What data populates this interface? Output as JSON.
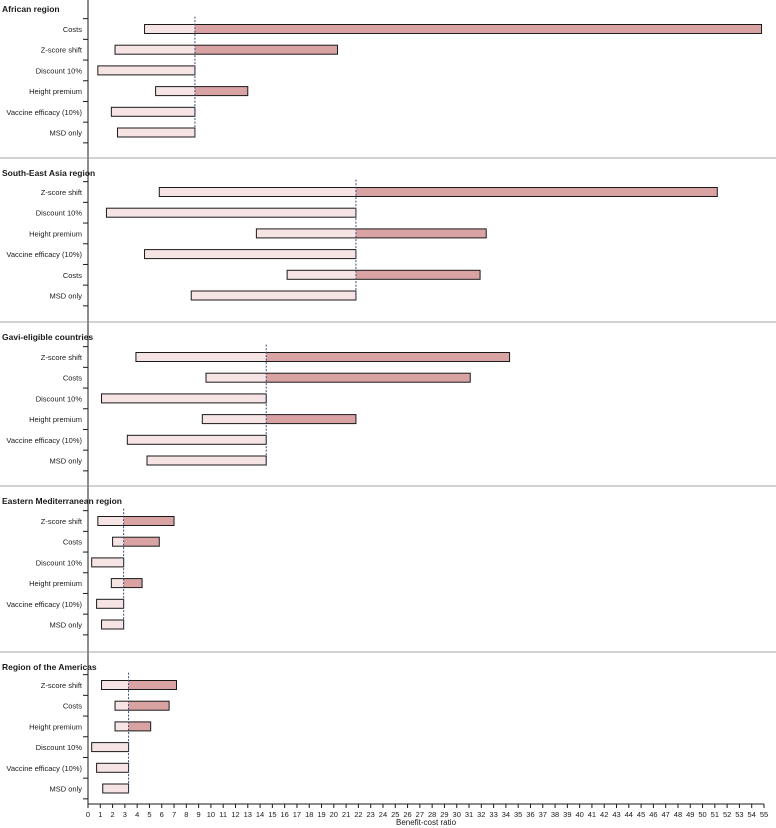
{
  "chart_data": {
    "type": "bar",
    "subtype": "tornado-range",
    "xlabel": "Benefit-cost ratio",
    "xlim": [
      0,
      55
    ],
    "x_ticks": [
      0,
      1,
      2,
      3,
      4,
      5,
      6,
      7,
      8,
      9,
      10,
      11,
      12,
      13,
      14,
      15,
      16,
      17,
      18,
      19,
      20,
      21,
      22,
      23,
      24,
      25,
      26,
      27,
      28,
      29,
      30,
      31,
      32,
      33,
      34,
      35,
      36,
      37,
      38,
      39,
      40,
      41,
      42,
      43,
      44,
      45,
      46,
      47,
      48,
      49,
      50,
      51,
      52,
      53,
      54,
      55
    ],
    "colors": {
      "above_base": "#d9a3a3",
      "below_base": "#f6e3e3",
      "bar_stroke": "#1a1a1a",
      "reference_line": "#3a4a7a",
      "axis": "#1a1a1a"
    },
    "panels": [
      {
        "title": "African region",
        "base": 8.7,
        "rows": [
          {
            "label": "Costs",
            "low": 4.6,
            "high": 54.8
          },
          {
            "label": "Z-score shift",
            "low": 2.2,
            "high": 20.3
          },
          {
            "label": "Discount 10%",
            "low": 0.8,
            "high": 8.7
          },
          {
            "label": "Height premium",
            "low": 5.5,
            "high": 13.0
          },
          {
            "label": "Vaccine efficacy (10%)",
            "low": 1.9,
            "high": 8.7
          },
          {
            "label": "MSD only",
            "low": 2.4,
            "high": 8.7
          }
        ]
      },
      {
        "title": "South-East Asia region",
        "base": 21.8,
        "rows": [
          {
            "label": "Z-score shift",
            "low": 5.8,
            "high": 51.2
          },
          {
            "label": "Discount 10%",
            "low": 1.5,
            "high": 21.8
          },
          {
            "label": "Height premium",
            "low": 13.7,
            "high": 32.4
          },
          {
            "label": "Vaccine efficacy (10%)",
            "low": 4.6,
            "high": 21.8
          },
          {
            "label": "Costs",
            "low": 16.2,
            "high": 31.9
          },
          {
            "label": "MSD only",
            "low": 8.4,
            "high": 21.8
          }
        ]
      },
      {
        "title": "Gavi-eligible countries",
        "base": 14.5,
        "rows": [
          {
            "label": "Z-score shift",
            "low": 3.9,
            "high": 34.3
          },
          {
            "label": "Costs",
            "low": 9.6,
            "high": 31.1
          },
          {
            "label": "Discount 10%",
            "low": 1.1,
            "high": 14.5
          },
          {
            "label": "Height premium",
            "low": 9.3,
            "high": 21.8
          },
          {
            "label": "Vaccine efficacy (10%)",
            "low": 3.2,
            "high": 14.5
          },
          {
            "label": "MSD only",
            "low": 4.8,
            "high": 14.5
          }
        ]
      },
      {
        "title": "Eastern Mediterranean region",
        "base": 2.9,
        "rows": [
          {
            "label": "Z-score shift",
            "low": 0.8,
            "high": 7.0
          },
          {
            "label": "Costs",
            "low": 2.0,
            "high": 5.8
          },
          {
            "label": "Discount 10%",
            "low": 0.3,
            "high": 2.9
          },
          {
            "label": "Height premium",
            "low": 1.9,
            "high": 4.4
          },
          {
            "label": "Vaccine efficacy (10%)",
            "low": 0.7,
            "high": 2.9
          },
          {
            "label": "MSD only",
            "low": 1.1,
            "high": 2.9
          }
        ]
      },
      {
        "title": "Region of the Americas",
        "base": 3.3,
        "rows": [
          {
            "label": "Z-score shift",
            "low": 1.1,
            "high": 7.2
          },
          {
            "label": "Costs",
            "low": 2.2,
            "high": 6.6
          },
          {
            "label": "Height premium",
            "low": 2.2,
            "high": 5.1
          },
          {
            "label": "Discount 10%",
            "low": 0.3,
            "high": 3.3
          },
          {
            "label": "Vaccine efficacy (10%)",
            "low": 0.7,
            "high": 3.3
          },
          {
            "label": "MSD only",
            "low": 1.2,
            "high": 3.3
          }
        ]
      }
    ]
  }
}
